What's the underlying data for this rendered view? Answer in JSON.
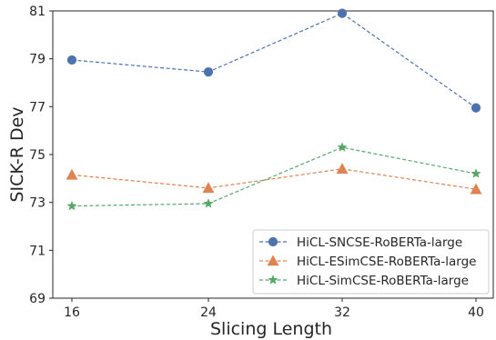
{
  "chart_data": {
    "type": "line",
    "x": [
      16,
      24,
      32,
      40
    ],
    "xlabel": "Slicing Length",
    "ylabel": "SICK-R Dev",
    "ylim": [
      69,
      81
    ],
    "yticks": [
      69,
      71,
      73,
      75,
      77,
      79,
      81
    ],
    "xticks": [
      16,
      24,
      32,
      40
    ],
    "grid": false,
    "legend_position": "lower-right",
    "series": [
      {
        "name": "HiCL-SNCSE-RoBERTa-large",
        "values": [
          78.95,
          78.45,
          80.9,
          76.95
        ],
        "color": "#4c72b0",
        "marker": "circle"
      },
      {
        "name": "HiCL-ESimCSE-RoBERTa-large",
        "values": [
          74.15,
          73.6,
          74.4,
          73.55
        ],
        "color": "#dd8452",
        "marker": "triangle"
      },
      {
        "name": "HiCL-SimCSE-RoBERTa-large",
        "values": [
          72.85,
          72.95,
          75.3,
          74.2
        ],
        "color": "#55a868",
        "marker": "star"
      }
    ]
  }
}
